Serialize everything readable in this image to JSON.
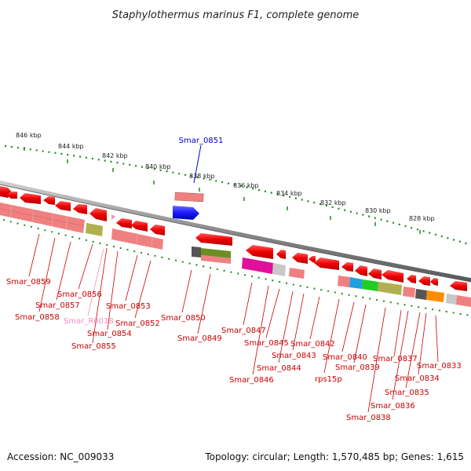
{
  "title": "Staphylothermus marinus F1, complete genome",
  "footer": {
    "accession": "Accession: NC_009033",
    "summary": "Topology: circular; Length: 1,570,485 bp; Genes: 1,615"
  },
  "ticks": [
    "846 kbp",
    "844 kbp",
    "842 kbp",
    "840 kbp",
    "838 kbp",
    "836 kbp",
    "834 kbp",
    "832 kbp",
    "830 kbp",
    "828 kbp"
  ],
  "highlight": {
    "label": "Smar_0851",
    "color": "#0000cc"
  },
  "genes": [
    {
      "label": "Smar_0859",
      "color": "#cc0000"
    },
    {
      "label": "Smar_0858",
      "color": "#cc0000"
    },
    {
      "label": "Smar_0857",
      "color": "#cc0000"
    },
    {
      "label": "Smar_0856",
      "color": "#cc0000"
    },
    {
      "label": "Smar_R0018",
      "color": "#f090c0"
    },
    {
      "label": "Smar_0855",
      "color": "#cc0000"
    },
    {
      "label": "Smar_0854",
      "color": "#cc0000"
    },
    {
      "label": "Smar_0853",
      "color": "#cc0000"
    },
    {
      "label": "Smar_0852",
      "color": "#cc0000"
    },
    {
      "label": "Smar_0850",
      "color": "#cc0000"
    },
    {
      "label": "Smar_0849",
      "color": "#cc0000"
    },
    {
      "label": "Smar_0847",
      "color": "#cc0000"
    },
    {
      "label": "Smar_0846",
      "color": "#cc0000"
    },
    {
      "label": "Smar_0845",
      "color": "#cc0000"
    },
    {
      "label": "Smar_0844",
      "color": "#cc0000"
    },
    {
      "label": "Smar_0843",
      "color": "#cc0000"
    },
    {
      "label": "Smar_0842",
      "color": "#cc0000"
    },
    {
      "label": "rps15p",
      "color": "#cc0000"
    },
    {
      "label": "Smar_0840",
      "color": "#cc0000"
    },
    {
      "label": "Smar_0839",
      "color": "#cc0000"
    },
    {
      "label": "Smar_0838",
      "color": "#cc0000"
    },
    {
      "label": "Smar_0837",
      "color": "#cc0000"
    },
    {
      "label": "Smar_0836",
      "color": "#cc0000"
    },
    {
      "label": "Smar_0835",
      "color": "#cc0000"
    },
    {
      "label": "Smar_0834",
      "color": "#cc0000"
    },
    {
      "label": "Smar_0833",
      "color": "#cc0000"
    }
  ],
  "colors": {
    "backbone": "#8a8a8a",
    "tick": "#1e8a1e",
    "gene": "#ee0000",
    "cog_pink": "#f08080",
    "leader": "#cc0000",
    "highlight": "#1a1aff"
  }
}
